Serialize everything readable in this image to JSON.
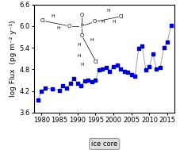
{
  "chart_data": {
    "type": "line",
    "ylabel": "log Flux  (pg m⁻² y⁻¹)",
    "x": [
      1979,
      1980,
      1981,
      1983,
      1985,
      1986,
      1987,
      1988,
      1989,
      1990,
      1991,
      1992,
      1993,
      1994,
      1995,
      1996,
      1997,
      1998,
      1999,
      2000,
      2001,
      2002,
      2003,
      2004,
      2005,
      2006,
      2007,
      2008,
      2009,
      2010,
      2011,
      2012,
      2013,
      2014,
      2015,
      2016
    ],
    "series": [
      {
        "type": "line",
        "color": "#aaaaaa",
        "values": [
          3.95,
          4.18,
          4.28,
          4.25,
          4.22,
          4.35,
          4.28,
          4.4,
          4.55,
          4.42,
          4.35,
          4.48,
          4.5,
          4.45,
          4.5,
          4.78,
          4.8,
          4.85,
          4.75,
          4.88,
          4.92,
          4.8,
          4.75,
          4.72,
          4.65,
          4.6,
          5.38,
          5.45,
          4.78,
          4.88,
          5.22,
          4.8,
          4.85,
          5.4,
          5.55,
          6.02
        ]
      },
      {
        "type": "scatter",
        "color": "#0000cc",
        "marker": "square",
        "values": [
          3.95,
          4.18,
          4.28,
          4.25,
          4.22,
          4.35,
          4.28,
          4.4,
          4.55,
          4.42,
          4.35,
          4.48,
          4.5,
          4.45,
          4.5,
          4.78,
          4.8,
          4.85,
          4.75,
          4.88,
          4.92,
          4.8,
          4.75,
          4.72,
          4.65,
          4.6,
          5.38,
          5.45,
          4.78,
          4.88,
          5.22,
          4.8,
          4.85,
          5.4,
          5.55,
          6.02
        ]
      }
    ],
    "xlim": [
      1978,
      2017
    ],
    "ylim": [
      3.6,
      6.6
    ],
    "xticks": [
      1980,
      1985,
      1990,
      1995,
      2000,
      2005,
      2010,
      2015
    ],
    "yticks": [
      3.6,
      4.2,
      4.8,
      5.4,
      6.0,
      6.6
    ],
    "annotations": [
      "P",
      "O",
      "O",
      "Cl",
      "H",
      "H",
      "O",
      "Cl",
      "H",
      "H",
      "H",
      "O",
      "Cl",
      "H",
      "H",
      "H",
      "H",
      "ice core"
    ]
  }
}
